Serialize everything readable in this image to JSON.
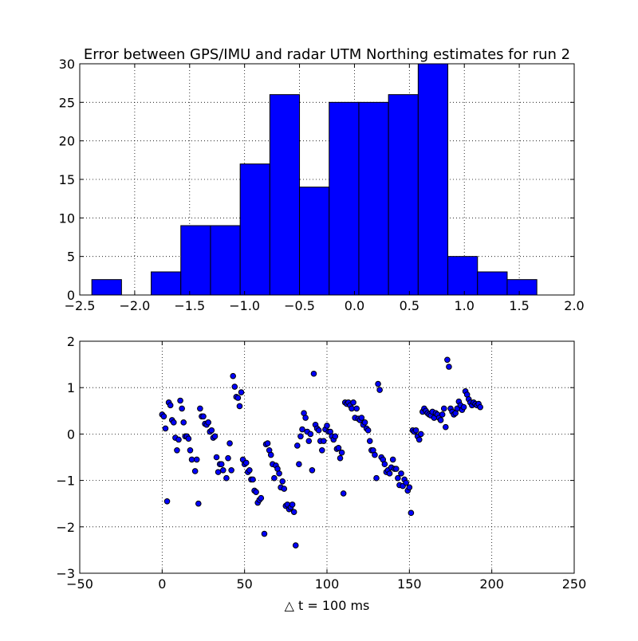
{
  "figure": {
    "title": "Error between GPS/IMU and radar UTM Northing estimates for run 2",
    "colors": {
      "bar_fill": "#0000ff",
      "bar_edge": "#000000",
      "point_fill": "#0000ff",
      "point_edge": "#000000",
      "background": "#ffffff",
      "grid": "#000000"
    }
  },
  "chart_data": [
    {
      "type": "bar",
      "subtype": "histogram",
      "title": "Error between GPS/IMU and radar UTM Northing estimates for run 2",
      "xlabel": "",
      "ylabel": "",
      "xlim": [
        -2.5,
        2.0
      ],
      "ylim": [
        0,
        30
      ],
      "xticks": [
        -2.5,
        -2.0,
        -1.5,
        -1.0,
        -0.5,
        0.0,
        0.5,
        1.0,
        1.5,
        2.0
      ],
      "xtick_labels": [
        "−2.5",
        "−2.0",
        "−1.5",
        "−1.0",
        "−0.5",
        "0.0",
        "0.5",
        "1.0",
        "1.5",
        "2.0"
      ],
      "yticks": [
        0,
        5,
        10,
        15,
        20,
        25,
        30
      ],
      "ytick_labels": [
        "0",
        "5",
        "10",
        "15",
        "20",
        "25",
        "30"
      ],
      "grid": true,
      "bin_edges": [
        -2.39,
        -2.12,
        -1.85,
        -1.58,
        -1.31,
        -1.04,
        -0.77,
        -0.5,
        -0.23,
        0.04,
        0.31,
        0.58,
        0.85,
        1.12,
        1.39,
        1.66
      ],
      "counts": [
        2,
        0,
        3,
        9,
        9,
        17,
        26,
        14,
        25,
        25,
        26,
        30,
        5,
        3,
        2
      ]
    },
    {
      "type": "scatter",
      "title": "",
      "xlabel": "△ t = 100 ms",
      "ylabel": "",
      "xlim": [
        -50,
        250
      ],
      "ylim": [
        -3,
        2
      ],
      "xticks": [
        -50,
        0,
        50,
        100,
        150,
        200,
        250
      ],
      "xtick_labels": [
        "−50",
        "0",
        "50",
        "100",
        "150",
        "200",
        "250"
      ],
      "yticks": [
        -3,
        -2,
        -1,
        0,
        1,
        2
      ],
      "ytick_labels": [
        "−3",
        "−2",
        "−1",
        "0",
        "1",
        "2"
      ],
      "grid": true,
      "points": [
        [
          0,
          0.42
        ],
        [
          1,
          0.38
        ],
        [
          2,
          0.12
        ],
        [
          3,
          -1.45
        ],
        [
          4,
          0.68
        ],
        [
          5,
          0.62
        ],
        [
          6,
          0.3
        ],
        [
          7,
          0.25
        ],
        [
          8,
          -0.08
        ],
        [
          9,
          -0.35
        ],
        [
          10,
          -0.12
        ],
        [
          11,
          0.72
        ],
        [
          12,
          0.55
        ],
        [
          13,
          0.25
        ],
        [
          14,
          -0.05
        ],
        [
          15,
          -0.05
        ],
        [
          16,
          -0.1
        ],
        [
          17,
          -0.35
        ],
        [
          18,
          -0.55
        ],
        [
          20,
          -0.8
        ],
        [
          21,
          -0.55
        ],
        [
          22,
          -1.5
        ],
        [
          23,
          0.55
        ],
        [
          24,
          0.38
        ],
        [
          25,
          0.38
        ],
        [
          26,
          0.22
        ],
        [
          27,
          0.2
        ],
        [
          28,
          0.25
        ],
        [
          29,
          0.05
        ],
        [
          30,
          0.08
        ],
        [
          31,
          -0.08
        ],
        [
          32,
          -0.05
        ],
        [
          33,
          -0.5
        ],
        [
          34,
          -0.82
        ],
        [
          35,
          -0.65
        ],
        [
          36,
          -0.65
        ],
        [
          37,
          -0.78
        ],
        [
          39,
          -0.95
        ],
        [
          40,
          -0.52
        ],
        [
          41,
          -0.2
        ],
        [
          42,
          -0.78
        ],
        [
          43,
          1.25
        ],
        [
          44,
          1.02
        ],
        [
          45,
          0.8
        ],
        [
          46,
          0.78
        ],
        [
          47,
          0.6
        ],
        [
          48,
          0.9
        ],
        [
          49,
          -0.55
        ],
        [
          50,
          -0.65
        ],
        [
          51,
          -0.62
        ],
        [
          52,
          -0.82
        ],
        [
          53,
          -0.78
        ],
        [
          54,
          -0.98
        ],
        [
          55,
          -0.98
        ],
        [
          56,
          -1.22
        ],
        [
          57,
          -1.25
        ],
        [
          58,
          -1.48
        ],
        [
          59,
          -1.42
        ],
        [
          60,
          -1.38
        ],
        [
          62,
          -2.15
        ],
        [
          63,
          -0.22
        ],
        [
          64,
          -0.2
        ],
        [
          65,
          -0.35
        ],
        [
          66,
          -0.45
        ],
        [
          67,
          -0.65
        ],
        [
          68,
          -0.95
        ],
        [
          69,
          -0.68
        ],
        [
          70,
          -0.75
        ],
        [
          71,
          -0.85
        ],
        [
          72,
          -1.15
        ],
        [
          73,
          -1.02
        ],
        [
          74,
          -1.18
        ],
        [
          75,
          -1.55
        ],
        [
          76,
          -1.52
        ],
        [
          77,
          -1.62
        ],
        [
          78,
          -1.58
        ],
        [
          79,
          -1.52
        ],
        [
          80,
          -1.68
        ],
        [
          81,
          -2.4
        ],
        [
          82,
          -0.25
        ],
        [
          83,
          -0.65
        ],
        [
          84,
          -0.05
        ],
        [
          85,
          0.1
        ],
        [
          86,
          0.45
        ],
        [
          87,
          0.35
        ],
        [
          88,
          0.05
        ],
        [
          89,
          -0.15
        ],
        [
          90,
          0.0
        ],
        [
          91,
          -0.78
        ],
        [
          92,
          1.3
        ],
        [
          93,
          0.2
        ],
        [
          94,
          0.12
        ],
        [
          95,
          0.08
        ],
        [
          96,
          -0.15
        ],
        [
          97,
          -0.35
        ],
        [
          98,
          -0.15
        ],
        [
          99,
          0.1
        ],
        [
          100,
          0.18
        ],
        [
          101,
          0.05
        ],
        [
          102,
          0.05
        ],
        [
          103,
          -0.05
        ],
        [
          104,
          -0.12
        ],
        [
          105,
          -0.05
        ],
        [
          106,
          -0.32
        ],
        [
          107,
          -0.3
        ],
        [
          108,
          -0.52
        ],
        [
          109,
          -0.4
        ],
        [
          110,
          -1.28
        ],
        [
          111,
          0.68
        ],
        [
          112,
          0.65
        ],
        [
          113,
          0.68
        ],
        [
          114,
          0.62
        ],
        [
          115,
          0.55
        ],
        [
          116,
          0.68
        ],
        [
          117,
          0.35
        ],
        [
          118,
          0.55
        ],
        [
          119,
          0.33
        ],
        [
          120,
          0.3
        ],
        [
          121,
          0.35
        ],
        [
          122,
          0.2
        ],
        [
          123,
          0.25
        ],
        [
          124,
          0.12
        ],
        [
          125,
          0.08
        ],
        [
          126,
          -0.15
        ],
        [
          127,
          -0.35
        ],
        [
          128,
          -0.35
        ],
        [
          129,
          -0.45
        ],
        [
          130,
          -0.95
        ],
        [
          131,
          1.08
        ],
        [
          132,
          0.95
        ],
        [
          133,
          -0.5
        ],
        [
          134,
          -0.55
        ],
        [
          135,
          -0.65
        ],
        [
          136,
          -0.82
        ],
        [
          137,
          -0.78
        ],
        [
          138,
          -0.85
        ],
        [
          139,
          -0.72
        ],
        [
          140,
          -0.55
        ],
        [
          141,
          -0.75
        ],
        [
          142,
          -0.75
        ],
        [
          143,
          -0.95
        ],
        [
          144,
          -1.1
        ],
        [
          145,
          -0.85
        ],
        [
          146,
          -1.12
        ],
        [
          147,
          -0.98
        ],
        [
          148,
          -1.05
        ],
        [
          149,
          -1.22
        ],
        [
          150,
          -1.15
        ],
        [
          151,
          -1.7
        ],
        [
          152,
          0.08
        ],
        [
          153,
          0.05
        ],
        [
          154,
          0.08
        ],
        [
          155,
          -0.05
        ],
        [
          156,
          -0.12
        ],
        [
          157,
          0.0
        ],
        [
          158,
          0.48
        ],
        [
          159,
          0.55
        ],
        [
          160,
          0.5
        ],
        [
          161,
          0.45
        ],
        [
          162,
          0.42
        ],
        [
          163,
          0.4
        ],
        [
          164,
          0.48
        ],
        [
          165,
          0.35
        ],
        [
          166,
          0.45
        ],
        [
          167,
          0.42
        ],
        [
          168,
          0.35
        ],
        [
          169,
          0.3
        ],
        [
          170,
          0.42
        ],
        [
          171,
          0.55
        ],
        [
          172,
          0.15
        ],
        [
          173,
          1.6
        ],
        [
          174,
          1.45
        ],
        [
          175,
          0.55
        ],
        [
          176,
          0.48
        ],
        [
          177,
          0.42
        ],
        [
          178,
          0.45
        ],
        [
          179,
          0.55
        ],
        [
          180,
          0.7
        ],
        [
          181,
          0.62
        ],
        [
          182,
          0.52
        ],
        [
          183,
          0.58
        ],
        [
          184,
          0.92
        ],
        [
          185,
          0.85
        ],
        [
          186,
          0.75
        ],
        [
          187,
          0.68
        ],
        [
          188,
          0.62
        ],
        [
          189,
          0.68
        ],
        [
          190,
          0.65
        ],
        [
          191,
          0.62
        ],
        [
          192,
          0.65
        ],
        [
          193,
          0.58
        ]
      ]
    }
  ]
}
